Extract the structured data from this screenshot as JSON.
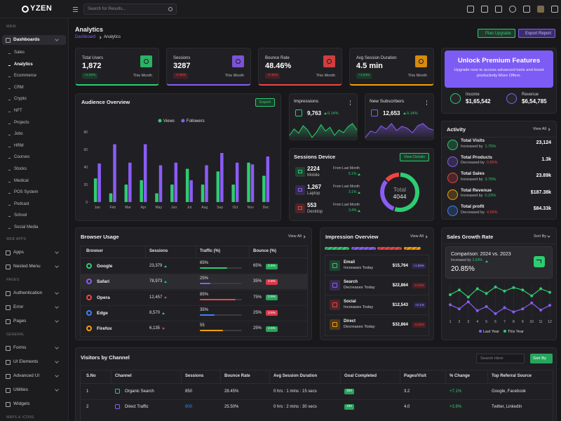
{
  "header": {
    "brand": "YZEN",
    "search_placeholder": "Search for Results..."
  },
  "sidebar": {
    "sections": [
      {
        "title": "MAIN",
        "items": [
          {
            "label": "Dashboards",
            "submenu": true,
            "active": true,
            "active_child": 1,
            "children": [
              "Sales",
              "Analytics",
              "Ecommerce",
              "CRM",
              "Crypto",
              "NFT",
              "Projects",
              "Jobs",
              "HRM",
              "Courses",
              "Stocks",
              "Medical",
              "POS System",
              "Podcast",
              "School",
              "Social Media"
            ]
          }
        ]
      },
      {
        "title": "WEB APPS",
        "items": [
          {
            "label": "Apps",
            "submenu": true
          },
          {
            "label": "Nested Menu",
            "submenu": true
          }
        ]
      },
      {
        "title": "PAGES",
        "items": [
          {
            "label": "Authentication",
            "submenu": true
          },
          {
            "label": "Error",
            "submenu": true
          },
          {
            "label": "Pages",
            "submenu": true
          }
        ]
      },
      {
        "title": "GENERAL",
        "items": [
          {
            "label": "Forms",
            "submenu": true
          },
          {
            "label": "UI Elements",
            "submenu": true
          },
          {
            "label": "Advanced UI",
            "submenu": true
          },
          {
            "label": "Utilities",
            "submenu": true
          },
          {
            "label": "Widgets",
            "submenu": false
          }
        ]
      },
      {
        "title": "MAPS & ICONS",
        "items": []
      }
    ]
  },
  "page_header": {
    "title": "Analytics",
    "breadcrumb": [
      "Dashboard",
      "Analytics"
    ],
    "actions": [
      "Plan Upgrade",
      "Export Report"
    ]
  },
  "stat_cards": [
    {
      "label": "Total Users",
      "value": "1,872",
      "change": "+1.02%",
      "period": "This Month",
      "color": "#2ecc71"
    },
    {
      "label": "Sessions",
      "value": "3287",
      "change": "-0.45%",
      "period": "This Month",
      "color": "#8b5cf6"
    },
    {
      "label": "Bounce Rate",
      "value": "48.46%",
      "change": "-0.45%",
      "period": "This Month",
      "color": "#ef4444"
    },
    {
      "label": "Avg Session Duration",
      "value": "4.5 min",
      "change": "+1.54%",
      "period": "This Month",
      "color": "#f59e0b"
    }
  ],
  "premium": {
    "title": "Unlock Premium Features",
    "text": "Upgrade now to access advanced tools and boost productivity More Offers.",
    "metrics": [
      {
        "label": "Income",
        "value": "$1,65,542",
        "color": "#2ecc71"
      },
      {
        "label": "Revenue",
        "value": "$6,54,785",
        "color": "#8b5cf6"
      }
    ]
  },
  "audience_overview": {
    "title": "Audience Overview",
    "action": "Export",
    "chart": {
      "type": "bar",
      "categories": [
        "Jan",
        "Feb",
        "Mar",
        "Apr",
        "May",
        "Jun",
        "Jul",
        "Aug",
        "Sep",
        "Oct",
        "Nov",
        "Dec"
      ],
      "series": [
        {
          "name": "Views",
          "color": "#2ecc71",
          "values": [
            27,
            10,
            20,
            25,
            10,
            20,
            38,
            20,
            35,
            20,
            45,
            30
          ]
        },
        {
          "name": "Followers",
          "color": "#8b5cf6",
          "values": [
            44,
            66,
            45,
            66,
            42,
            45,
            25,
            42,
            56,
            45,
            43,
            52
          ]
        }
      ],
      "ylim": [
        0,
        80
      ],
      "yticks": [
        0,
        20,
        40,
        60,
        80
      ]
    }
  },
  "mini_cards": [
    {
      "title": "Impressions",
      "value": "9,763",
      "change": "0.14%",
      "chart": {
        "type": "area",
        "color": "#2ecc71",
        "values": [
          40,
          52,
          44,
          58,
          50,
          36,
          46,
          60,
          48,
          55,
          40,
          50,
          45,
          56,
          62,
          50
        ]
      }
    },
    {
      "title": "New Subscribers",
      "value": "12,653",
      "change": "0.14%",
      "chart": {
        "type": "area",
        "color": "#8b5cf6",
        "values": [
          30,
          44,
          40,
          55,
          48,
          60,
          45,
          54,
          50,
          40,
          55,
          60,
          50,
          46
        ]
      }
    }
  ],
  "sessions_device": {
    "title": "Sessions Device",
    "action": "View Details",
    "chart": {
      "type": "pie",
      "categories": [
        "Mobile",
        "Laptop",
        "Desktop"
      ],
      "values": [
        2224,
        1267,
        553
      ],
      "value_labels": [
        "2224",
        "1,267",
        "553"
      ],
      "colors": [
        "#2ecc71",
        "#8b5cf6",
        "#ef4444"
      ],
      "captions": [
        "From Last Month",
        "From Last Month",
        "From Last Month"
      ],
      "changes": [
        "5.1%",
        "3.1%",
        "3.4%"
      ],
      "center_label": "Total",
      "center_value": 4044
    }
  },
  "activity": {
    "title": "Activity",
    "action": "View All",
    "items": [
      {
        "name": "Total Visits",
        "caption": "Increased by",
        "change": "1.75%",
        "trend": "up",
        "value": "23,124",
        "color": "#2ecc71"
      },
      {
        "name": "Total Products",
        "caption": "Decreased by",
        "change": "0.85%",
        "trend": "down",
        "value": "1.3k",
        "color": "#8b5cf6"
      },
      {
        "name": "Total Sales",
        "caption": "Increased by",
        "change": "3.76%",
        "trend": "up",
        "value": "23.89k",
        "color": "#ef4444"
      },
      {
        "name": "Total Revenue",
        "caption": "Increased by",
        "change": "0.23%",
        "trend": "up",
        "value": "$187.38k",
        "color": "#f59e0b"
      },
      {
        "name": "Total profit",
        "caption": "Decreased by",
        "change": "4.95%",
        "trend": "down",
        "value": "$84.33k",
        "color": "#3b82f6"
      }
    ]
  },
  "browser_usage": {
    "title": "Browser Usage",
    "action": "View All",
    "columns": [
      "Browser",
      "Sessions",
      "Traffic (%)",
      "Bounce (%)"
    ],
    "rows": [
      {
        "browser": "Google",
        "sessions": "23,379",
        "trend": "up",
        "traffic": 65,
        "traffic_label": "65%",
        "bounce": "65%",
        "badge": "2.5%",
        "badge_status": "good",
        "color": "#2ecc71"
      },
      {
        "browser": "Safari",
        "sessions": "78,973",
        "trend": "up",
        "traffic": 25,
        "traffic_label": "25%",
        "bounce": "35%",
        "badge": "3.8%",
        "badge_status": "bad",
        "color": "#8b5cf6"
      },
      {
        "browser": "Opera",
        "sessions": "12,457",
        "trend": "down",
        "traffic": 85,
        "traffic_label": "85%",
        "bounce": "75%",
        "badge": "2.5%",
        "badge_status": "good",
        "color": "#ef4444"
      },
      {
        "browser": "Edge",
        "sessions": "8,570",
        "trend": "up",
        "traffic": 35,
        "traffic_label": "35%",
        "bounce": "25%",
        "badge": "3.5%",
        "badge_status": "bad",
        "color": "#3b82f6"
      },
      {
        "browser": "Firefox",
        "sessions": "6,135",
        "trend": "down",
        "traffic": 55,
        "traffic_label": "55",
        "bounce": "25%",
        "badge": "2.5%",
        "badge_status": "good",
        "color": "#f59e0b"
      }
    ]
  },
  "impression_overview": {
    "title": "Impression Overview",
    "action": "View All",
    "items": [
      {
        "name": "Email",
        "caption": "Increases Today",
        "value": "$15,764",
        "change": "+1.56%",
        "color": "#2ecc71"
      },
      {
        "name": "Search",
        "caption": "Decreases Today",
        "value": "$22,864",
        "change": "-0.15%",
        "color": "#8b5cf6"
      },
      {
        "name": "Social",
        "caption": "Increases Today",
        "value": "$12,543",
        "change": "+2.1%",
        "color": "#ef4444"
      },
      {
        "name": "Direct",
        "caption": "Decreases Today",
        "value": "$32,864",
        "change": "-0.45%",
        "color": "#f59e0b"
      }
    ]
  },
  "sales_growth": {
    "title": "Sales Growth Rate",
    "action": "Sort By",
    "comparison": "Comparison: 2024 vs. 2023",
    "caption": "Increased by",
    "change": "2.63%",
    "value": "20.85%",
    "chart": {
      "type": "line",
      "x": [
        1,
        2,
        3,
        4,
        5,
        6,
        7,
        8,
        9,
        10,
        11,
        12
      ],
      "xlim": [
        1,
        12
      ],
      "xticks": [
        1,
        2,
        3,
        4,
        5,
        6,
        7,
        8,
        9,
        10,
        11,
        12
      ],
      "series": [
        {
          "name": "Last Year",
          "color": "#8b5cf6",
          "values": [
            45,
            38,
            50,
            35,
            42,
            30,
            40,
            33,
            38,
            48,
            36,
            44
          ]
        },
        {
          "name": "This Year",
          "color": "#2ecc71",
          "values": [
            62,
            70,
            58,
            72,
            64,
            75,
            68,
            74,
            70,
            60,
            72,
            66
          ]
        }
      ]
    }
  },
  "visitors": {
    "title": "Visitors by Channel",
    "search_placeholder": "Search Here",
    "action": "Sort By",
    "columns": [
      "S.No",
      "Channel",
      "Sessions",
      "Bounce Rate",
      "Avg Session Duration",
      "Goal Completed",
      "Pages/Visit",
      "% Change",
      "Top Referral Source"
    ],
    "rows": [
      [
        "1",
        "Organic Search",
        "850",
        "28.45%",
        "0 hrs : 1 mins : 15 secs",
        "300",
        "3.2",
        "+7.1%",
        "Google, Facebook"
      ],
      [
        "2",
        "Direct Traffic",
        "900",
        "25.50%",
        "0 hrs : 2 mins : 30 secs",
        "180",
        "4.0",
        "+3.8%",
        "Twitter, LinkedIn"
      ]
    ]
  }
}
